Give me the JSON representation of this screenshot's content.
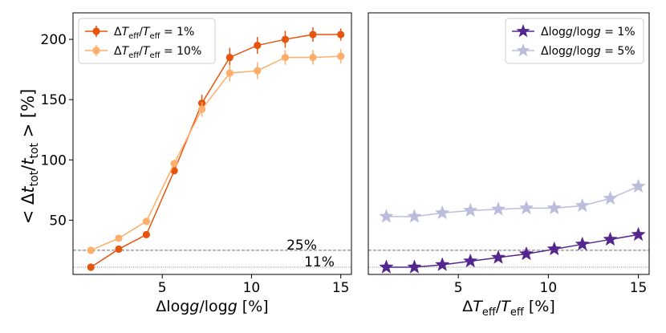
{
  "figure": {
    "ylabel_parts": [
      "< Δ",
      "t",
      "tot",
      "/",
      "t",
      "tot",
      " > [%]"
    ]
  },
  "chart_data": [
    {
      "type": "line",
      "panel": "left",
      "xlabel": "Δlogg/logg [%]",
      "xlim": [
        0,
        15.6
      ],
      "ylim": [
        5,
        222
      ],
      "xticks": [
        5,
        10,
        15
      ],
      "yticks": [
        50,
        100,
        150,
        200
      ],
      "legend_position": "top-left",
      "hlines": [
        {
          "y": 25,
          "label": "25%",
          "style": "dashed"
        },
        {
          "y": 11,
          "label": "11%",
          "style": "dotted"
        }
      ],
      "series": [
        {
          "name": "ΔT_eff/T_eff = 1%",
          "legend_main": "ΔT",
          "legend_sub": "eff",
          "legend_mid": "/T",
          "legend_sub2": "eff",
          "legend_tail": " = 1%",
          "color": "#e6550d",
          "marker": "circle",
          "x": [
            1,
            2.56,
            4.11,
            5.67,
            7.22,
            8.78,
            10.33,
            11.89,
            13.44,
            15
          ],
          "y": [
            11,
            26,
            38,
            91,
            147,
            185,
            195,
            200,
            204,
            204
          ],
          "yerr": [
            0,
            1,
            1,
            3,
            7,
            8,
            7,
            7,
            6,
            5
          ]
        },
        {
          "name": "ΔT_eff/T_eff = 10%",
          "legend_main": "ΔT",
          "legend_sub": "eff",
          "legend_mid": "/T",
          "legend_sub2": "eff",
          "legend_tail": " = 10%",
          "color": "#fdae6b",
          "marker": "circle",
          "x": [
            1,
            2.56,
            4.11,
            5.67,
            7.22,
            8.78,
            10.33,
            11.89,
            13.44,
            15
          ],
          "y": [
            25,
            35,
            49,
            97,
            142,
            172,
            174,
            185,
            185,
            186
          ],
          "yerr": [
            0,
            1,
            1,
            3,
            6,
            7,
            7,
            6,
            6,
            6
          ]
        }
      ]
    },
    {
      "type": "line",
      "panel": "right",
      "xlabel": "ΔT_eff/T_eff [%]",
      "xlim": [
        0,
        15.6
      ],
      "ylim": [
        5,
        222
      ],
      "xticks": [
        5,
        10,
        15
      ],
      "legend_position": "top-right",
      "hlines": [
        {
          "y": 25,
          "style": "dashed"
        },
        {
          "y": 11,
          "style": "dotted"
        }
      ],
      "series": [
        {
          "name": "Δlogg/logg = 1%",
          "legend_text": "Δlogg/logg = 1%",
          "color": "#54278f",
          "marker": "star",
          "x": [
            1,
            2.56,
            4.11,
            5.67,
            7.22,
            8.78,
            10.33,
            11.89,
            13.44,
            15
          ],
          "y": [
            11,
            11,
            13,
            16,
            19,
            22,
            26,
            30,
            34,
            38
          ]
        },
        {
          "name": "Δlogg/logg = 5%",
          "legend_text": "Δlogg/logg = 5%",
          "color": "#bcbddc",
          "marker": "star",
          "x": [
            1,
            2.56,
            4.11,
            5.67,
            7.22,
            8.78,
            10.33,
            11.89,
            13.44,
            15
          ],
          "y": [
            53,
            53,
            56,
            58,
            59,
            60,
            60,
            62,
            68,
            78
          ]
        }
      ]
    }
  ]
}
